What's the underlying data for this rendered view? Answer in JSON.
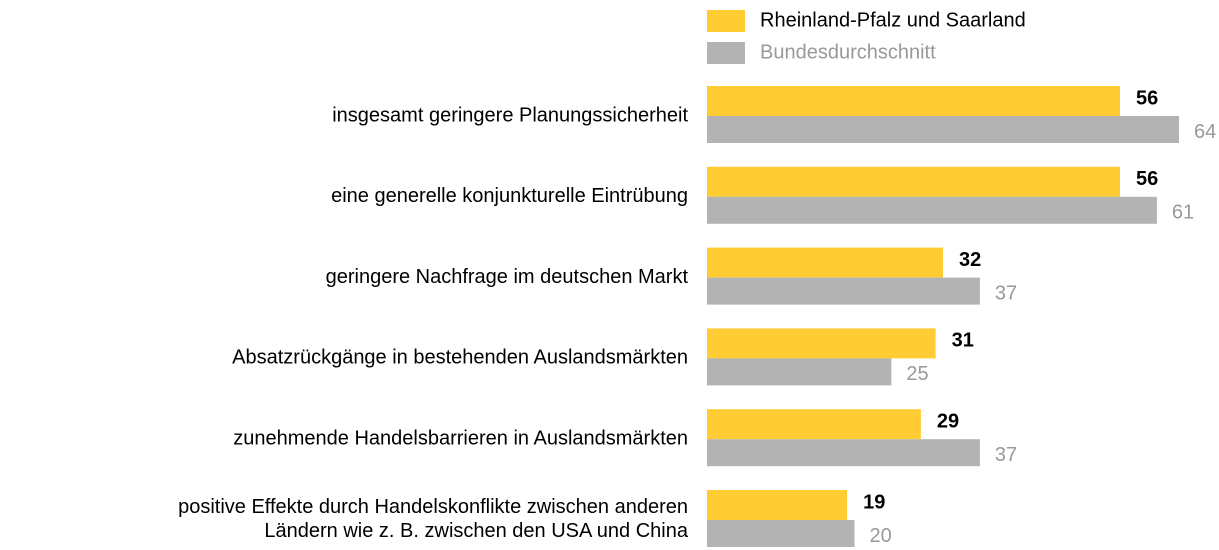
{
  "chart_data": {
    "type": "barh",
    "categories": [
      "insgesamt geringere Planungssicherheit",
      "eine generelle konjunkturelle Eintrübung",
      "geringere Nachfrage im deutschen Markt",
      "Absatzrückgänge in bestehenden Auslandsmärkten",
      "zunehmende Handelsbarrieren in Auslandsmärkten",
      "positive Effekte durch Handelskonflikte zwischen anderen\nLändern wie z. B. zwischen den USA und China"
    ],
    "series": [
      {
        "name": "Rheinland-Pfalz und Saarland",
        "color": "#ffcc33",
        "values": [
          56,
          56,
          32,
          31,
          29,
          19
        ]
      },
      {
        "name": "Bundesdurchschnitt",
        "color": "#b3b3b3",
        "values": [
          64,
          61,
          37,
          25,
          37,
          20
        ]
      }
    ]
  }
}
